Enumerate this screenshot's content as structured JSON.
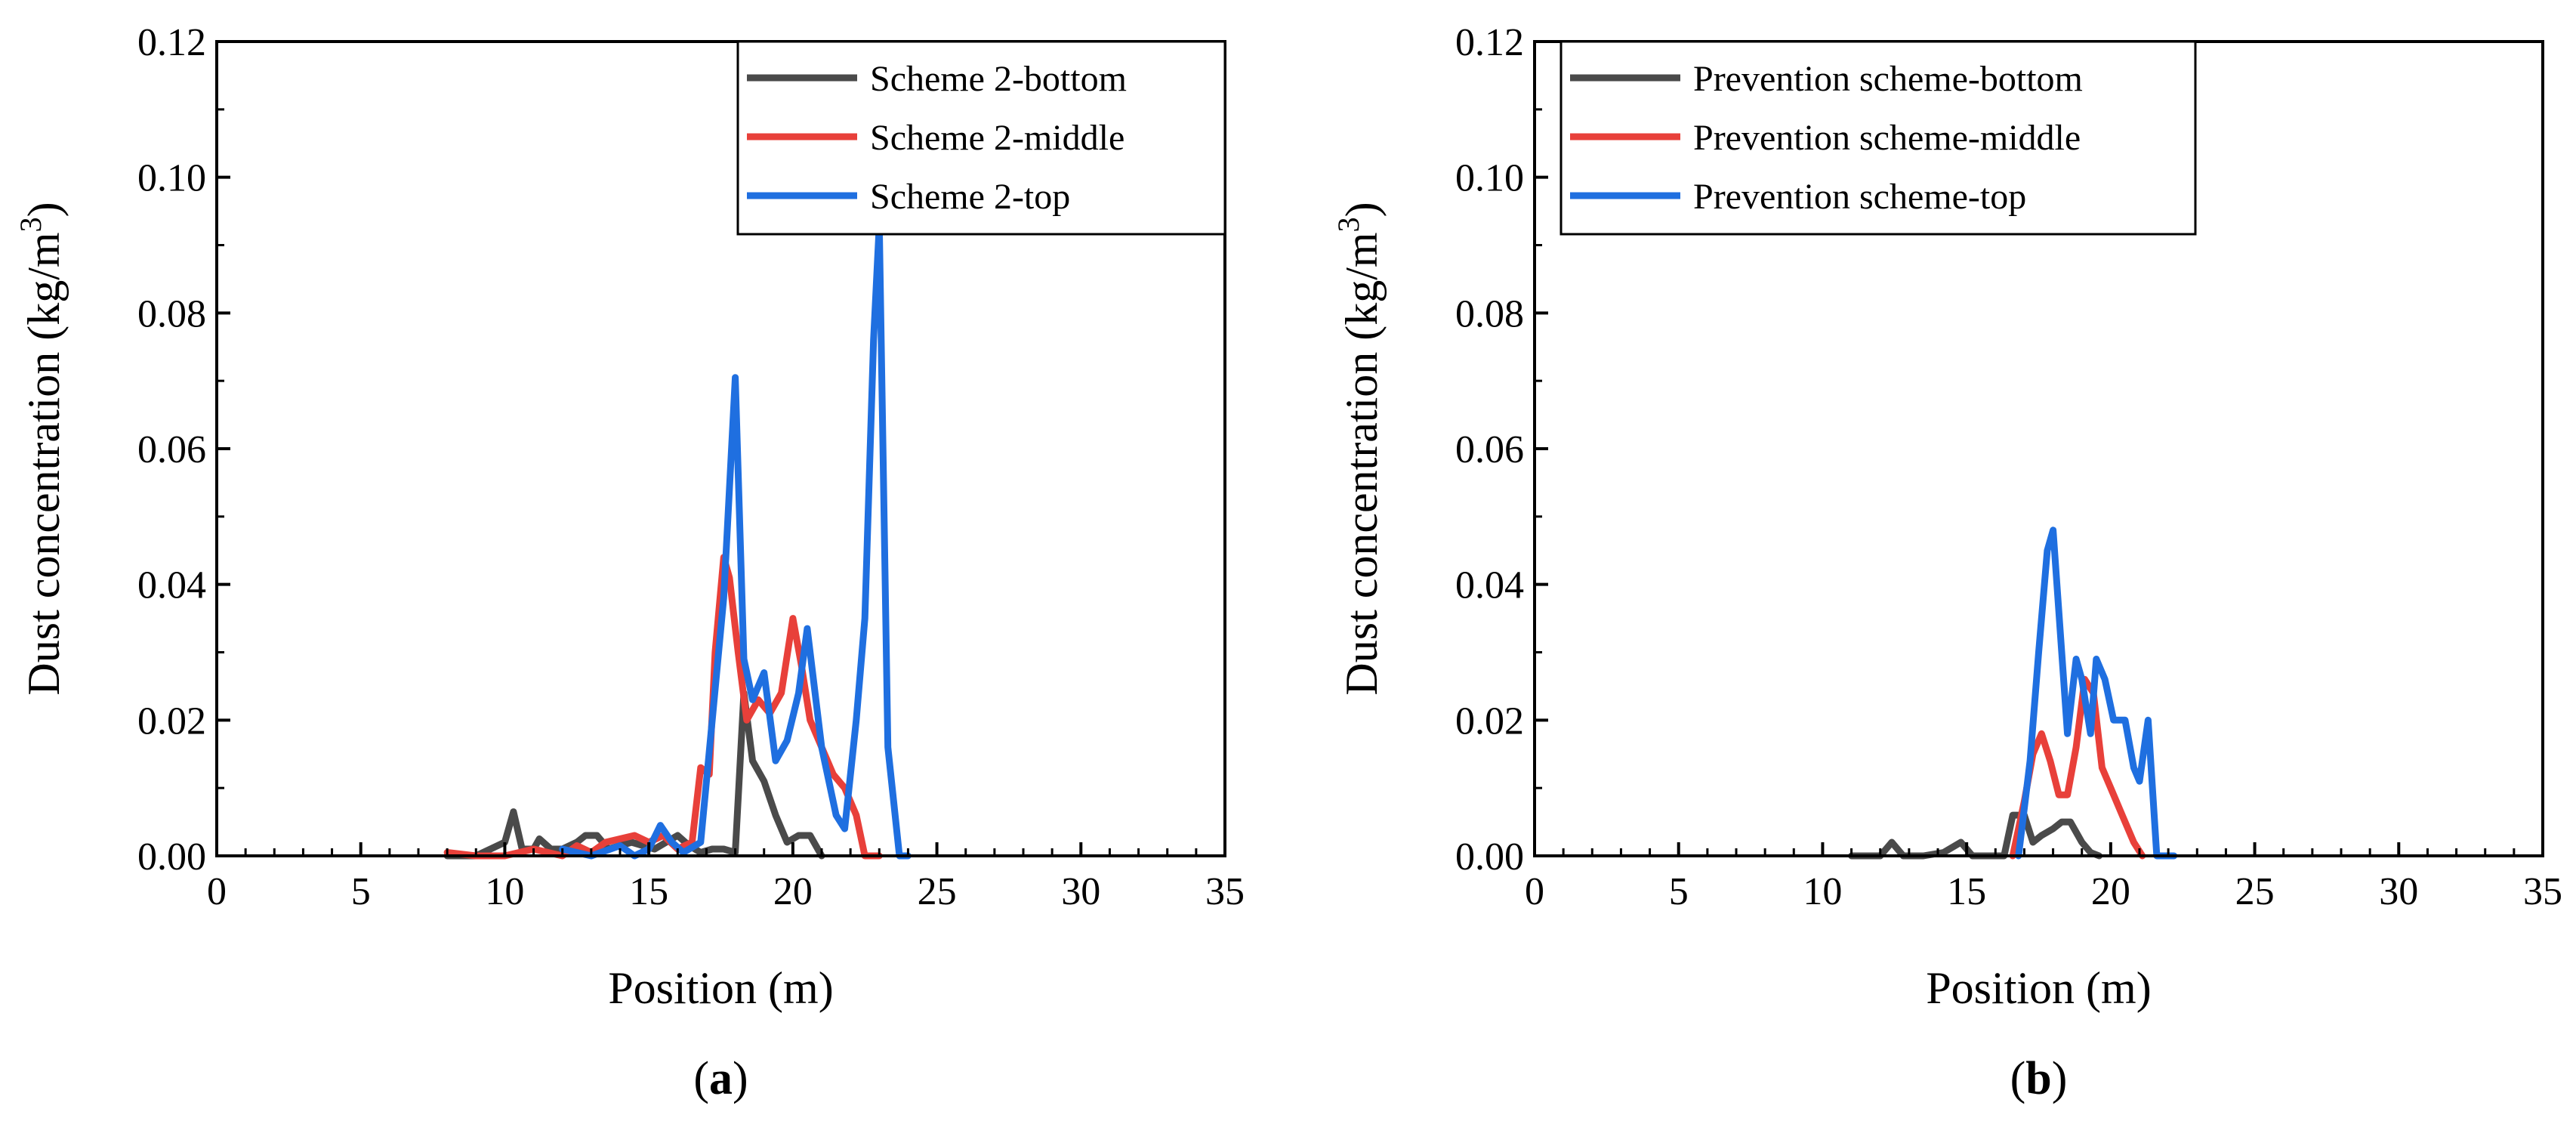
{
  "chart_data": [
    {
      "type": "line",
      "panel_label": "a",
      "xlabel": "Position (m)",
      "ylabel": "Dust concentration (kg/m",
      "ylabel_sup": "3",
      "ylabel_close": ")",
      "xlim": [
        0,
        35
      ],
      "ylim": [
        0,
        0.12
      ],
      "xticks": [
        0,
        5,
        10,
        15,
        20,
        25,
        30,
        35
      ],
      "yticks": [
        "0.00",
        "0.02",
        "0.04",
        "0.06",
        "0.08",
        "0.10",
        "0.12"
      ],
      "grid": false,
      "legend_position": "top-right",
      "series": [
        {
          "name": "Scheme 2-bottom",
          "color": "#4a4a4a",
          "x": [
            8,
            9,
            9.5,
            10,
            10.3,
            10.6,
            11,
            11.2,
            11.6,
            12,
            12.5,
            12.8,
            13.2,
            13.6,
            14,
            14.4,
            14.8,
            15.2,
            15.6,
            16,
            16.4,
            16.8,
            17.2,
            17.6,
            18,
            18.3,
            18.6,
            19,
            19.4,
            19.8,
            20.2,
            20.6,
            21
          ],
          "y": [
            0,
            0,
            0.001,
            0.002,
            0.0065,
            0.001,
            0.001,
            0.0025,
            0.001,
            0.001,
            0.002,
            0.003,
            0.003,
            0.001,
            0.0015,
            0.002,
            0.0015,
            0.001,
            0.002,
            0.003,
            0.0015,
            0.0005,
            0.001,
            0.001,
            0.0005,
            0.024,
            0.014,
            0.011,
            0.006,
            0.002,
            0.003,
            0.003,
            0
          ]
        },
        {
          "name": "Scheme 2-middle",
          "color": "#e8403a",
          "x": [
            8,
            9,
            10,
            11,
            12,
            12.5,
            13,
            13.5,
            14,
            14.5,
            15,
            15.5,
            16,
            16.5,
            16.8,
            17.1,
            17.3,
            17.6,
            17.8,
            18.1,
            18.4,
            18.8,
            19.2,
            19.6,
            20,
            20.3,
            20.6,
            21,
            21.4,
            21.8,
            22.2,
            22.5,
            23
          ],
          "y": [
            0.0005,
            0,
            0,
            0.001,
            0,
            0.0015,
            0.0005,
            0.002,
            0.0025,
            0.003,
            0.002,
            0.003,
            0.001,
            0.002,
            0.013,
            0.012,
            0.03,
            0.044,
            0.041,
            0.03,
            0.02,
            0.023,
            0.021,
            0.024,
            0.035,
            0.028,
            0.02,
            0.016,
            0.012,
            0.01,
            0.006,
            0,
            0
          ]
        },
        {
          "name": "Scheme 2-top",
          "color": "#1f6fe0",
          "x": [
            12,
            13,
            14,
            14.5,
            15,
            15.4,
            15.8,
            16.2,
            16.8,
            17.2,
            17.6,
            18,
            18.3,
            18.6,
            19,
            19.4,
            19.8,
            20.2,
            20.5,
            21,
            21.5,
            21.8,
            22.2,
            22.5,
            22.8,
            23,
            23.3,
            23.7,
            24
          ],
          "y": [
            0.001,
            0,
            0.0015,
            0,
            0.001,
            0.0045,
            0.002,
            0.0005,
            0.002,
            0.02,
            0.038,
            0.0705,
            0.029,
            0.023,
            0.027,
            0.014,
            0.017,
            0.024,
            0.0335,
            0.016,
            0.006,
            0.004,
            0.02,
            0.035,
            0.076,
            0.093,
            0.016,
            0,
            0
          ]
        }
      ]
    },
    {
      "type": "line",
      "panel_label": "b",
      "xlabel": "Position (m)",
      "ylabel": "Dust concentration (kg/m",
      "ylabel_sup": "3",
      "ylabel_close": ")",
      "xlim": [
        0,
        35
      ],
      "ylim": [
        0,
        0.12
      ],
      "xticks": [
        0,
        5,
        10,
        15,
        20,
        25,
        30,
        35
      ],
      "yticks": [
        "0.00",
        "0.02",
        "0.04",
        "0.06",
        "0.08",
        "0.10",
        "0.12"
      ],
      "grid": false,
      "legend_position": "top-right",
      "series": [
        {
          "name": "Prevention scheme-bottom",
          "color": "#4a4a4a",
          "x": [
            11,
            12,
            12.4,
            12.8,
            13.5,
            14.2,
            14.8,
            15.2,
            15.8,
            16.3,
            16.6,
            17,
            17.3,
            17.6,
            18,
            18.3,
            18.6,
            19,
            19.3,
            19.6
          ],
          "y": [
            0,
            0,
            0.002,
            0,
            0,
            0.0005,
            0.002,
            0,
            0,
            0,
            0.006,
            0.006,
            0.002,
            0.003,
            0.004,
            0.005,
            0.005,
            0.002,
            0.0005,
            0
          ]
        },
        {
          "name": "Prevention scheme-middle",
          "color": "#e8403a",
          "x": [
            16.6,
            17,
            17.3,
            17.6,
            17.9,
            18.2,
            18.5,
            18.8,
            19.1,
            19.4,
            19.7,
            20,
            20.4,
            20.8,
            21.1
          ],
          "y": [
            0,
            0.008,
            0.015,
            0.018,
            0.014,
            0.009,
            0.009,
            0.016,
            0.026,
            0.024,
            0.013,
            0.01,
            0.006,
            0.002,
            0
          ]
        },
        {
          "name": "Prevention scheme-top",
          "color": "#1f6fe0",
          "x": [
            16.8,
            17.2,
            17.5,
            17.8,
            18,
            18.3,
            18.5,
            18.8,
            19,
            19.3,
            19.5,
            19.8,
            20.1,
            20.5,
            20.8,
            21,
            21.3,
            21.6,
            21.9,
            22.2
          ],
          "y": [
            0,
            0.014,
            0.03,
            0.045,
            0.048,
            0.03,
            0.018,
            0.029,
            0.026,
            0.018,
            0.029,
            0.026,
            0.02,
            0.02,
            0.013,
            0.011,
            0.02,
            0,
            0,
            0
          ]
        }
      ]
    }
  ]
}
